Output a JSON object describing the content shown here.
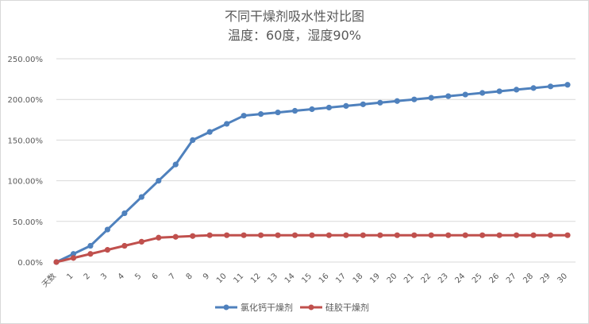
{
  "chart_data": {
    "type": "line",
    "title": "不同干燥剂吸水性对比图",
    "subtitle": "温度：60度，湿度90%",
    "categories": [
      "天数",
      "1",
      "2",
      "3",
      "4",
      "5",
      "6",
      "7",
      "8",
      "9",
      "10",
      "11",
      "12",
      "13",
      "14",
      "15",
      "16",
      "17",
      "18",
      "19",
      "20",
      "21",
      "22",
      "23",
      "24",
      "25",
      "26",
      "27",
      "28",
      "29",
      "30"
    ],
    "y_ticks": [
      "0.00%",
      "50.00%",
      "100.00%",
      "150.00%",
      "200.00%",
      "250.00%"
    ],
    "ylim": [
      0,
      250
    ],
    "grid": true,
    "legend_position": "bottom",
    "series": [
      {
        "name": "氯化钙干燥剂",
        "color": "#4f81bd",
        "values": [
          0,
          10,
          20,
          40,
          60,
          80,
          100,
          120,
          150,
          160,
          170,
          180,
          182,
          184,
          186,
          188,
          190,
          192,
          194,
          196,
          198,
          200,
          202,
          204,
          206,
          208,
          210,
          212,
          214,
          216,
          218
        ]
      },
      {
        "name": "硅胶干燥剂",
        "color": "#c0504d",
        "values": [
          0,
          5,
          10,
          15,
          20,
          25,
          30,
          31,
          32,
          33,
          33,
          33,
          33,
          33,
          33,
          33,
          33,
          33,
          33,
          33,
          33,
          33,
          33,
          33,
          33,
          33,
          33,
          33,
          33,
          33,
          33
        ]
      }
    ]
  }
}
